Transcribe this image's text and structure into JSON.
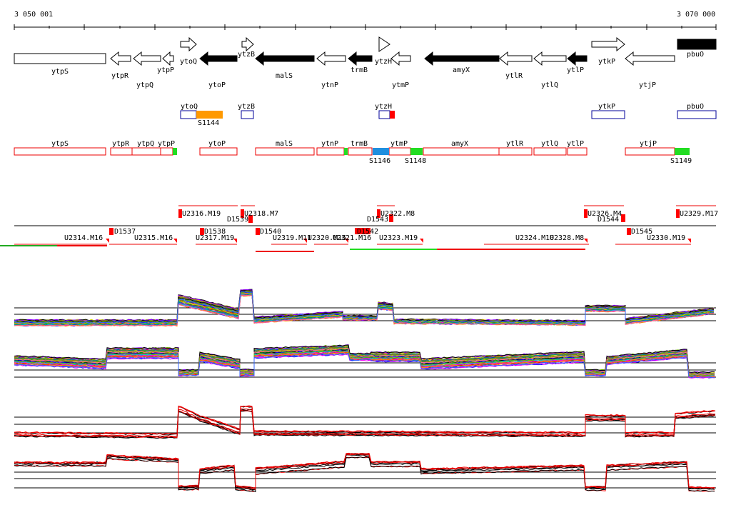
{
  "ruler": {
    "start_label": "3 050 001",
    "end_label": "3 070 000"
  },
  "genes": [
    {
      "name": "ytpS",
      "strand": "+",
      "filled": false
    },
    {
      "name": "ytpR",
      "strand": "-",
      "filled": false
    },
    {
      "name": "ytpQ",
      "strand": "-",
      "filled": false
    },
    {
      "name": "ytpP",
      "strand": "-",
      "filled": false
    },
    {
      "name": "ytoQ",
      "strand": "+",
      "filled": false
    },
    {
      "name": "ytoP",
      "strand": "-",
      "filled": true
    },
    {
      "name": "ytzB",
      "strand": "+",
      "filled": false
    },
    {
      "name": "malS",
      "strand": "-",
      "filled": true
    },
    {
      "name": "ytnP",
      "strand": "-",
      "filled": false
    },
    {
      "name": "trmB",
      "strand": "-",
      "filled": true
    },
    {
      "name": "ytzH",
      "strand": "+",
      "filled": false
    },
    {
      "name": "ytmP",
      "strand": "-",
      "filled": false
    },
    {
      "name": "amyX",
      "strand": "-",
      "filled": true
    },
    {
      "name": "ytlR",
      "strand": "-",
      "filled": false
    },
    {
      "name": "ytlQ",
      "strand": "-",
      "filled": false
    },
    {
      "name": "ytlP",
      "strand": "-",
      "filled": true
    },
    {
      "name": "ytkP",
      "strand": "+",
      "filled": false
    },
    {
      "name": "ytjP",
      "strand": "-",
      "filled": false
    },
    {
      "name": "pbuO",
      "strand": "+",
      "filled": true
    }
  ],
  "s_labels": [
    "S1144",
    "S1146",
    "S1148",
    "S1149"
  ],
  "plus_segments": [
    "U2316.M19",
    "D1539",
    "U2318.M7",
    "D1543",
    "U2322.M8",
    "U2326.M4",
    "D1544",
    "U2329.M17"
  ],
  "minus_segments": [
    "U2314.M16",
    "D1537",
    "U2315.M16",
    "D1538",
    "U2317.M19",
    "D1540",
    "U2319.M11",
    "U2320.M16",
    "U2321.M16",
    "D1542",
    "U2323.M19",
    "U2324.M10",
    "U2328.M8",
    "D1545",
    "U2330.M19"
  ],
  "colors": {
    "antisense": "#ee0000",
    "sense_box": "#000099",
    "orange": "#ff9900",
    "blue": "#1f8fdf",
    "green": "#22dd22",
    "red": "#ff0000"
  }
}
